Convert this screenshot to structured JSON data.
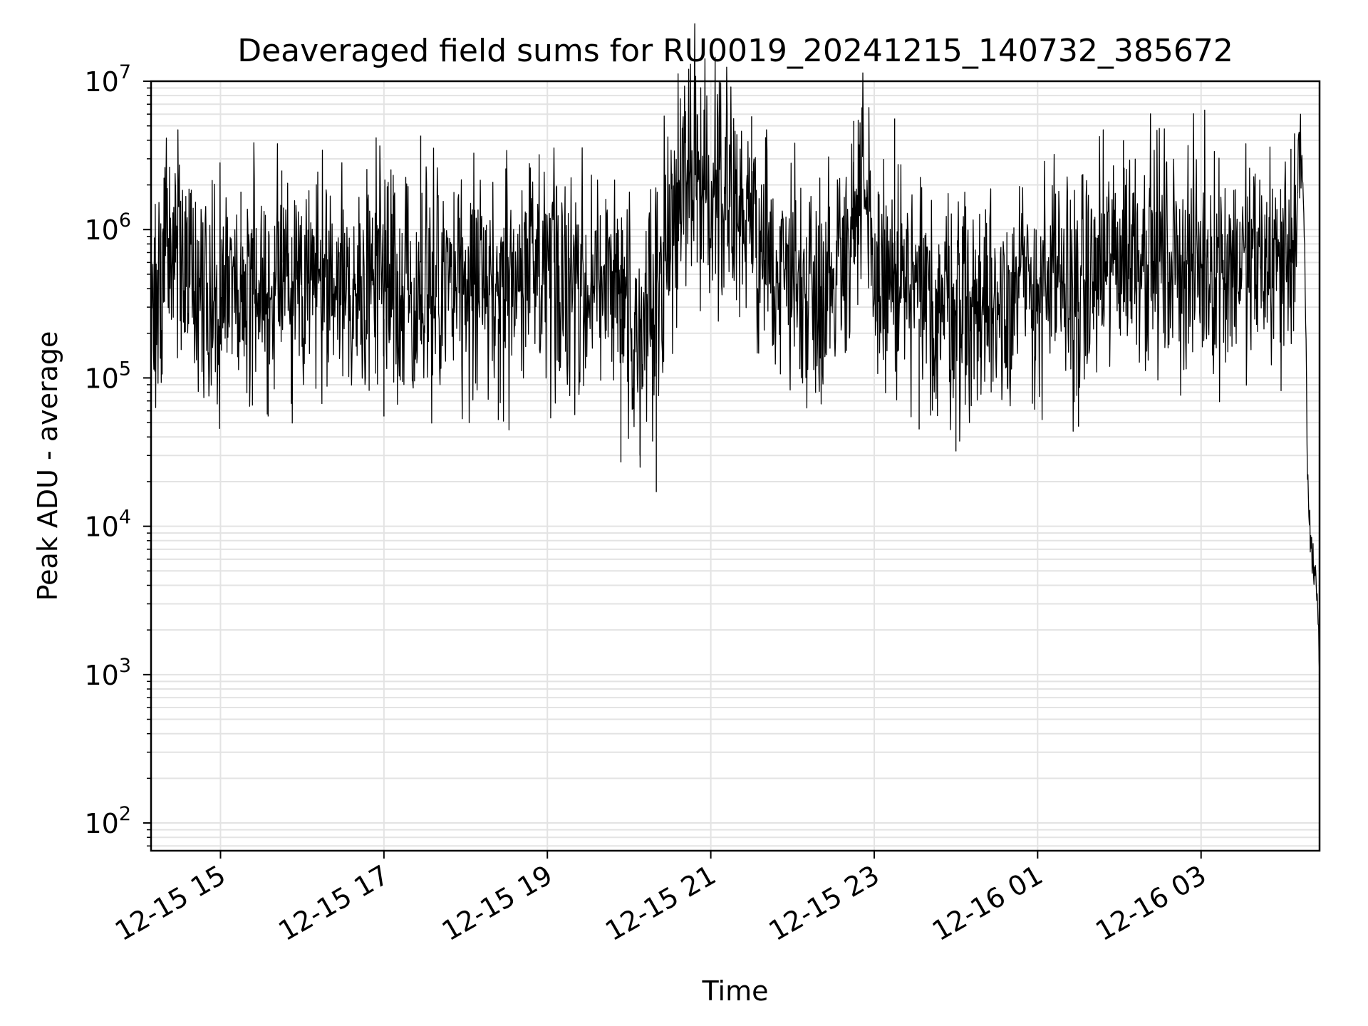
{
  "chart_data": {
    "type": "line",
    "title": "Deaveraged field sums for RU0019_20241215_140732_385672",
    "xlabel": "Time",
    "ylabel": "Peak ADU - average",
    "yscale": "log",
    "ylim": [
      65,
      10000000
    ],
    "xlim": [
      "2024-12-15 14:09",
      "2024-12-16 04:27"
    ],
    "x_ticks": [
      {
        "time": "2024-12-15 15:00",
        "label": "12-15 15"
      },
      {
        "time": "2024-12-15 17:00",
        "label": "12-15 17"
      },
      {
        "time": "2024-12-15 19:00",
        "label": "12-15 19"
      },
      {
        "time": "2024-12-15 21:00",
        "label": "12-15 21"
      },
      {
        "time": "2024-12-15 23:00",
        "label": "12-15 23"
      },
      {
        "time": "2024-12-16 01:00",
        "label": "12-16 01"
      },
      {
        "time": "2024-12-16 03:00",
        "label": "12-16 03"
      }
    ],
    "y_ticks": [
      {
        "value": 100,
        "base": "10",
        "exp": "2"
      },
      {
        "value": 1000,
        "base": "10",
        "exp": "3"
      },
      {
        "value": 10000,
        "base": "10",
        "exp": "4"
      },
      {
        "value": 100000,
        "base": "10",
        "exp": "5"
      },
      {
        "value": 1000000,
        "base": "10",
        "exp": "6"
      },
      {
        "value": 10000000,
        "base": "10",
        "exp": "7"
      }
    ],
    "grid": "major and minor",
    "series_color": "#000000",
    "series": [
      {
        "x": [
          "2024-12-15 14:09",
          "2024-12-15 14:12",
          "2024-12-15 14:15",
          "2024-12-15 14:20",
          "2024-12-15 14:25",
          "2024-12-15 14:30",
          "2024-12-15 14:35",
          "2024-12-15 14:40",
          "2024-12-15 14:45",
          "2024-12-15 14:52",
          "2024-12-15 15:00",
          "2024-12-15 15:10",
          "2024-12-15 15:20",
          "2024-12-15 15:35",
          "2024-12-15 15:50",
          "2024-12-15 16:10",
          "2024-12-15 16:30",
          "2024-12-15 16:50",
          "2024-12-15 17:10",
          "2024-12-15 17:30",
          "2024-12-15 17:50",
          "2024-12-15 18:10",
          "2024-12-15 18:30",
          "2024-12-15 18:50",
          "2024-12-15 19:10",
          "2024-12-15 19:30",
          "2024-12-15 19:45",
          "2024-12-15 19:52",
          "2024-12-15 20:00",
          "2024-12-15 20:07",
          "2024-12-15 20:15",
          "2024-12-15 20:22",
          "2024-12-15 20:30",
          "2024-12-15 20:37",
          "2024-12-15 20:45",
          "2024-12-15 20:52",
          "2024-12-15 21:00",
          "2024-12-15 21:07",
          "2024-12-15 21:15",
          "2024-12-15 21:22",
          "2024-12-15 21:30",
          "2024-12-15 21:45",
          "2024-12-15 22:00",
          "2024-12-15 22:15",
          "2024-12-15 22:30",
          "2024-12-15 22:45",
          "2024-12-15 22:52",
          "2024-12-15 23:00",
          "2024-12-15 23:15",
          "2024-12-15 23:30",
          "2024-12-15 23:45",
          "2024-12-16 00:00",
          "2024-12-16 00:15",
          "2024-12-16 00:30",
          "2024-12-16 00:45",
          "2024-12-16 01:00",
          "2024-12-16 01:15",
          "2024-12-16 01:30",
          "2024-12-16 01:45",
          "2024-12-16 02:00",
          "2024-12-16 02:15",
          "2024-12-16 02:30",
          "2024-12-16 02:45",
          "2024-12-16 03:00",
          "2024-12-16 03:15",
          "2024-12-16 03:30",
          "2024-12-16 03:45",
          "2024-12-16 04:00",
          "2024-12-16 04:06",
          "2024-12-16 04:10",
          "2024-12-16 04:13",
          "2024-12-16 04:15",
          "2024-12-16 04:16",
          "2024-12-16 04:18",
          "2024-12-16 04:20",
          "2024-12-16 04:22",
          "2024-12-16 04:24",
          "2024-12-16 04:26",
          "2024-12-16 04:27"
        ],
        "y": [
          300000,
          330000,
          280000,
          1000000,
          1200000,
          600000,
          500000,
          400000,
          380000,
          450000,
          420000,
          400000,
          450000,
          420000,
          430000,
          420000,
          440000,
          450000,
          430000,
          440000,
          420000,
          440000,
          430000,
          450000,
          440000,
          460000,
          420000,
          420000,
          250000,
          180000,
          250000,
          600000,
          1000000,
          2200000,
          3000000,
          2000000,
          1800000,
          2500000,
          1800000,
          1200000,
          800000,
          600000,
          500000,
          400000,
          500000,
          1200000,
          1500000,
          500000,
          400000,
          350000,
          300000,
          350000,
          300000,
          350000,
          380000,
          400000,
          420000,
          380000,
          500000,
          700000,
          800000,
          650000,
          600000,
          600000,
          620000,
          580000,
          590000,
          600000,
          800000,
          1000000,
          2500000,
          1800000,
          800000,
          30000,
          8000,
          6000,
          5000,
          2500,
          1000
        ]
      }
    ],
    "series_envelope_note": "",
    "dips": [
      {
        "x": "2024-12-15 15:35",
        "y": 55000
      },
      {
        "x": "2024-12-15 17:00",
        "y": 55000
      },
      {
        "x": "2024-12-15 18:24",
        "y": 52000
      },
      {
        "x": "2024-12-15 19:54",
        "y": 27000
      },
      {
        "x": "2024-12-15 20:08",
        "y": 30000
      },
      {
        "x": "2024-12-15 20:20",
        "y": 17000
      },
      {
        "x": "2024-12-15 23:33",
        "y": 45000
      },
      {
        "x": "2024-12-16 00:00",
        "y": 32000
      },
      {
        "x": "2024-12-16 01:30",
        "y": 47000
      }
    ],
    "spikes": [
      {
        "x": "2024-12-15 14:27",
        "y": 2000000
      },
      {
        "x": "2024-12-15 15:15",
        "y": 1800000
      },
      {
        "x": "2024-12-15 15:45",
        "y": 2500000
      },
      {
        "x": "2024-12-15 17:27",
        "y": 4300000
      },
      {
        "x": "2024-12-15 19:05",
        "y": 2000000
      },
      {
        "x": "2024-12-15 20:50",
        "y": 6000000
      },
      {
        "x": "2024-12-15 21:30",
        "y": 5800000
      },
      {
        "x": "2024-12-15 22:45",
        "y": 5400000
      },
      {
        "x": "2024-12-15 23:15",
        "y": 5600000
      },
      {
        "x": "2024-12-16 02:03",
        "y": 4000000
      },
      {
        "x": "2024-12-16 04:06",
        "y": 3500000
      }
    ]
  }
}
